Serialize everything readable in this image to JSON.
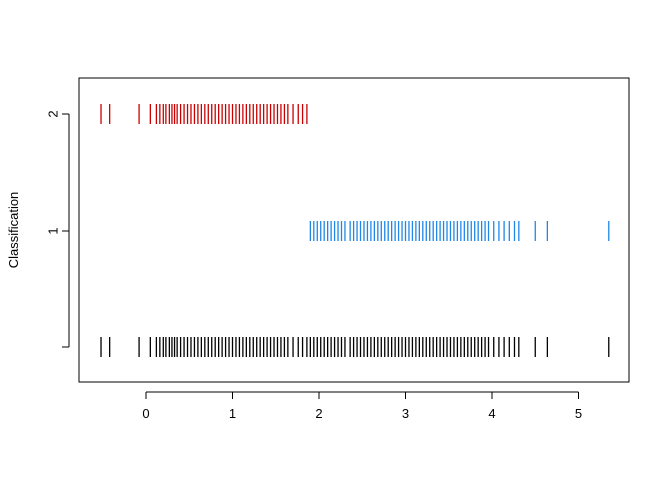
{
  "chart_data": {
    "type": "strip",
    "title": "",
    "xlabel": "",
    "ylabel": "Classification",
    "xlim": [
      -0.78,
      5.6
    ],
    "x_ticks": [
      0,
      1,
      2,
      3,
      4,
      5
    ],
    "x_tick_labels": [
      "0",
      "1",
      "2",
      "3",
      "4",
      "5"
    ],
    "y_tick_labels": [
      "",
      "1",
      "2"
    ],
    "grid": false,
    "legend": "none",
    "rows": [
      {
        "key": "all",
        "y_tick_label": "",
        "color": "#000000",
        "values": [
          -0.52,
          -0.42,
          -0.08,
          0.05,
          0.12,
          0.16,
          0.2,
          0.23,
          0.27,
          0.3,
          0.33,
          0.36,
          0.4,
          0.44,
          0.48,
          0.52,
          0.56,
          0.6,
          0.64,
          0.68,
          0.72,
          0.76,
          0.8,
          0.84,
          0.88,
          0.92,
          0.96,
          1.0,
          1.04,
          1.08,
          1.12,
          1.16,
          1.2,
          1.24,
          1.28,
          1.32,
          1.36,
          1.4,
          1.44,
          1.48,
          1.52,
          1.56,
          1.6,
          1.64,
          1.7,
          1.76,
          1.81,
          1.86,
          1.9,
          1.94,
          1.98,
          2.02,
          2.06,
          2.1,
          2.14,
          2.18,
          2.22,
          2.26,
          2.3,
          2.36,
          2.4,
          2.44,
          2.48,
          2.52,
          2.56,
          2.6,
          2.64,
          2.68,
          2.72,
          2.76,
          2.8,
          2.84,
          2.88,
          2.92,
          2.96,
          3.0,
          3.04,
          3.08,
          3.12,
          3.16,
          3.2,
          3.24,
          3.28,
          3.32,
          3.36,
          3.4,
          3.44,
          3.48,
          3.52,
          3.56,
          3.6,
          3.64,
          3.68,
          3.72,
          3.76,
          3.8,
          3.84,
          3.88,
          3.92,
          3.96,
          4.02,
          4.08,
          4.14,
          4.2,
          4.26,
          4.31,
          4.5,
          4.64,
          5.35
        ]
      },
      {
        "key": "1",
        "y_tick_label": "1",
        "color": "#1f87e8",
        "values": [
          1.9,
          1.94,
          1.98,
          2.02,
          2.06,
          2.1,
          2.14,
          2.18,
          2.22,
          2.26,
          2.3,
          2.36,
          2.4,
          2.44,
          2.48,
          2.52,
          2.56,
          2.6,
          2.64,
          2.68,
          2.72,
          2.76,
          2.8,
          2.84,
          2.88,
          2.92,
          2.96,
          3.0,
          3.04,
          3.08,
          3.12,
          3.16,
          3.2,
          3.24,
          3.28,
          3.32,
          3.36,
          3.4,
          3.44,
          3.48,
          3.52,
          3.56,
          3.6,
          3.64,
          3.68,
          3.72,
          3.76,
          3.8,
          3.84,
          3.88,
          3.92,
          3.96,
          4.02,
          4.08,
          4.14,
          4.2,
          4.26,
          4.31,
          4.5,
          4.64,
          5.35
        ]
      },
      {
        "key": "2",
        "y_tick_label": "2",
        "color": "#cc0000",
        "values": [
          -0.52,
          -0.42,
          -0.08,
          0.05,
          0.12,
          0.16,
          0.2,
          0.23,
          0.27,
          0.3,
          0.33,
          0.36,
          0.4,
          0.44,
          0.48,
          0.52,
          0.56,
          0.6,
          0.64,
          0.68,
          0.72,
          0.76,
          0.8,
          0.84,
          0.88,
          0.92,
          0.96,
          1.0,
          1.04,
          1.08,
          1.12,
          1.16,
          1.2,
          1.24,
          1.28,
          1.32,
          1.36,
          1.4,
          1.44,
          1.48,
          1.52,
          1.56,
          1.6,
          1.64,
          1.7,
          1.76,
          1.81,
          1.86
        ]
      }
    ]
  }
}
